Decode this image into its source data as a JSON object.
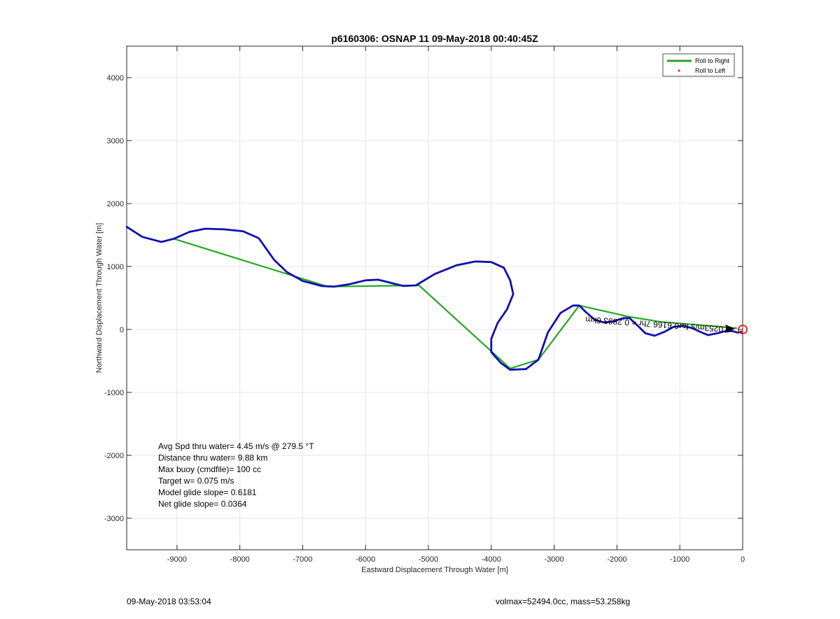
{
  "chart_data": {
    "type": "line",
    "title": "p6160306: OSNAP 11 09-May-2018 00:40:45Z",
    "xlabel": "Eastward Displacement Through Water [m]",
    "ylabel": "Northward Displacement Through Water [m]",
    "xlim": [
      -9800,
      0
    ],
    "ylim": [
      -3500,
      4500
    ],
    "xticks": [
      "-9000",
      "-8000",
      "-7000",
      "-6000",
      "-5000",
      "-4000",
      "-3000",
      "-2000",
      "-1000",
      "0"
    ],
    "xtick_values": [
      -9000,
      -8000,
      -7000,
      -6000,
      -5000,
      -4000,
      -3000,
      -2000,
      -1000,
      0
    ],
    "yticks": [
      "-3000",
      "-2000",
      "-1000",
      "0",
      "1000",
      "2000",
      "3000",
      "4000"
    ],
    "ytick_values": [
      -3000,
      -2000,
      -1000,
      0,
      1000,
      2000,
      3000,
      4000
    ],
    "grid": true,
    "legend_position": "top-right",
    "legend": [
      {
        "label": "Roll to Right",
        "color": "#2ca02c",
        "style": "line"
      },
      {
        "label": "Roll to Left",
        "color": "#ff0000",
        "style": "dot"
      }
    ],
    "series": [
      {
        "name": "Roll to Right",
        "color": "#22aa22",
        "x": [
          -9050,
          -6600,
          -5150,
          -3700,
          -3250,
          -2600,
          -1800,
          -1300,
          -800,
          -100
        ],
        "y": [
          1440,
          680,
          700,
          -620,
          -480,
          380,
          200,
          120,
          80,
          20
        ]
      },
      {
        "color": "#1010b0",
        "x": [
          -9800,
          -9550,
          -9250,
          -9050,
          -8800,
          -8550,
          -8250,
          -7950,
          -7700,
          -7450,
          -7250,
          -7000,
          -6700,
          -6500,
          -6250,
          -6000,
          -5800,
          -5600,
          -5400,
          -5200,
          -4900,
          -4550,
          -4250,
          -4000,
          -3800,
          -3700,
          -3650,
          -3750,
          -3900,
          -4000,
          -4000,
          -3850,
          -3700,
          -3450,
          -3250,
          -3100,
          -2900,
          -2700,
          -2600,
          -2500,
          -2350,
          -2200,
          -2050,
          -1900,
          -1800,
          -1650,
          -1550,
          -1400,
          -1250,
          -1100,
          -950,
          -800,
          -650,
          -550,
          -400,
          -250,
          -150,
          -80,
          -20
        ],
        "y": [
          1630,
          1470,
          1390,
          1440,
          1550,
          1600,
          1590,
          1560,
          1450,
          1100,
          910,
          770,
          690,
          680,
          720,
          780,
          790,
          740,
          690,
          700,
          880,
          1020,
          1080,
          1070,
          980,
          780,
          560,
          320,
          100,
          -150,
          -360,
          -530,
          -640,
          -630,
          -480,
          -50,
          260,
          380,
          380,
          280,
          150,
          110,
          130,
          180,
          180,
          40,
          -60,
          -100,
          -40,
          40,
          60,
          20,
          -50,
          -90,
          -60,
          -20,
          -30,
          -50,
          -40
        ]
      }
    ],
    "markers": [
      {
        "x": 0,
        "y": 0,
        "color": "#ff0000",
        "shape": "circle"
      }
    ],
    "stats": [
      "Avg Spd thru water=  4.45 m/s @ 279.5 °T",
      "Distance thru water=  9.88 km",
      "Max buoy (cmdfile)= 100 cc",
      "Target w= 0.075 m/s",
      "Model glide slope= 0.6181",
      "Net glide slope= 0.0364"
    ],
    "annotation": "0.0253m/s for0.6166 7hr = 0.2893 6km"
  },
  "footer": {
    "left": "09-May-2018 03:53:04",
    "right": "volmax=52494.0cc, mass=53.258kg"
  }
}
